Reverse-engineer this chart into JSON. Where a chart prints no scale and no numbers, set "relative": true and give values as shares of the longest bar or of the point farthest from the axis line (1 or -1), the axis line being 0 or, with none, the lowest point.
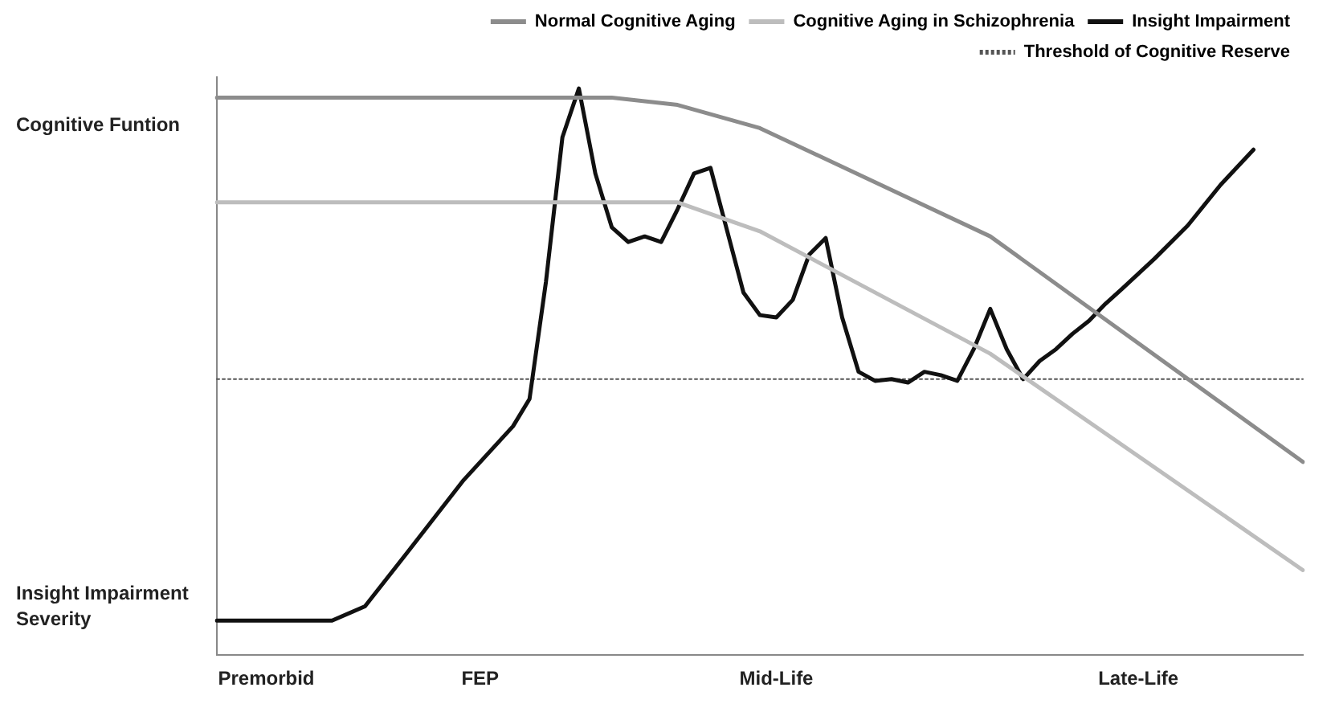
{
  "chart_data": {
    "type": "line",
    "relative": true,
    "legend": "top right",
    "tick_labels": "x",
    "grid": false,
    "marker": "none",
    "categories": [
      null,
      null,
      null,
      "Premorbid",
      null,
      null,
      null,
      null,
      null,
      null,
      null,
      null,
      null,
      null,
      null,
      null,
      "FEP",
      null,
      null,
      null,
      null,
      null,
      null,
      null,
      null,
      null,
      null,
      null,
      null,
      null,
      null,
      null,
      null,
      null,
      "Mid-Life",
      null,
      null,
      null,
      null,
      null,
      null,
      null,
      null,
      null,
      null,
      null,
      null,
      null,
      null,
      null,
      null,
      null,
      null,
      null,
      null,
      null,
      "Late-Life",
      null,
      null,
      null,
      null,
      null,
      null,
      null,
      null,
      null,
      null
    ],
    "annotations": [
      "Cognitive Funtion",
      "Insight Impairment Severity"
    ],
    "series": [
      {
        "name": "Normal Cognitive Aging",
        "color": "#8c8c8c",
        "line_style": "solid",
        "values": [
          0.984,
          null,
          null,
          null,
          null,
          null,
          null,
          null,
          null,
          null,
          null,
          null,
          null,
          null,
          null,
          null,
          null,
          null,
          null,
          null,
          null,
          null,
          null,
          null,
          0.984,
          null,
          null,
          null,
          0.971,
          null,
          null,
          null,
          null,
          0.93,
          null,
          null,
          null,
          null,
          null,
          null,
          null,
          null,
          null,
          null,
          null,
          null,
          null,
          0.739,
          null,
          null,
          null,
          null,
          null,
          null,
          null,
          null,
          null,
          null,
          null,
          null,
          null,
          null,
          null,
          null,
          null,
          null,
          0.341
        ]
      },
      {
        "name": "Cognitive Aging in Schizophrenia",
        "color": "#bdbdbd",
        "line_style": "solid",
        "values": [
          0.799,
          null,
          null,
          null,
          null,
          null,
          null,
          null,
          null,
          null,
          null,
          null,
          null,
          null,
          null,
          null,
          null,
          null,
          null,
          null,
          null,
          null,
          null,
          null,
          null,
          null,
          null,
          null,
          0.799,
          null,
          null,
          null,
          null,
          0.748,
          null,
          null,
          null,
          null,
          null,
          null,
          null,
          null,
          null,
          null,
          null,
          null,
          null,
          0.532,
          null,
          null,
          null,
          null,
          null,
          null,
          null,
          null,
          null,
          null,
          null,
          null,
          null,
          null,
          null,
          null,
          null,
          null,
          0.15
        ]
      },
      {
        "name": "Insight Impairment",
        "color": "#111111",
        "line_style": "solid",
        "values": [
          0.061,
          null,
          null,
          null,
          null,
          null,
          null,
          0.061,
          null,
          0.086,
          null,
          null,
          0.197,
          null,
          null,
          0.309,
          null,
          null,
          0.404,
          0.452,
          0.659,
          0.914,
          1,
          0.85,
          0.755,
          0.729,
          0.739,
          0.729,
          0.787,
          0.85,
          0.86,
          0.75,
          0.64,
          0.6,
          0.596,
          0.627,
          0.707,
          0.736,
          0.596,
          0.5,
          0.484,
          0.487,
          0.481,
          0.5,
          0.494,
          0.484,
          0.54,
          0.611,
          0.54,
          0.487,
          0.519,
          0.54,
          0.567,
          0.59,
          0.62,
          0.646,
          null,
          0.7,
          null,
          0.758,
          null,
          0.83,
          null,
          0.892,
          null,
          null,
          null
        ]
      },
      {
        "name": "Threshold of Cognitive Reserve",
        "color": "#555555",
        "line_style": "dotted",
        "values": [
          0.487,
          null,
          null,
          null,
          null,
          null,
          null,
          null,
          null,
          null,
          null,
          null,
          null,
          null,
          null,
          null,
          null,
          null,
          null,
          null,
          null,
          null,
          null,
          null,
          null,
          null,
          null,
          null,
          null,
          null,
          null,
          null,
          null,
          null,
          null,
          null,
          null,
          null,
          null,
          null,
          null,
          null,
          null,
          null,
          null,
          null,
          null,
          null,
          null,
          null,
          null,
          null,
          null,
          null,
          null,
          null,
          null,
          null,
          null,
          null,
          null,
          null,
          null,
          null,
          null,
          null,
          0.487
        ]
      }
    ]
  }
}
